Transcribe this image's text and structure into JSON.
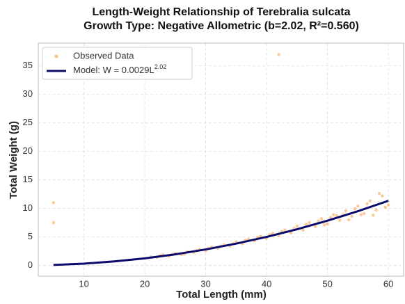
{
  "chart_data": {
    "type": "scatter",
    "title": "Length-Weight Relationship of Terebralia sulcata",
    "subtitle": "Growth Type: Negative Allometric (b=2.02, R²=0.560)",
    "x_label": "Total Length (mm)",
    "y_label": "Total Weight (g)",
    "xlim": [
      2.5,
      62.5
    ],
    "ylim": [
      -1.9,
      39
    ],
    "xticks": [
      10,
      20,
      30,
      40,
      50,
      60
    ],
    "yticks": [
      0,
      5,
      10,
      15,
      20,
      25,
      30,
      35
    ],
    "grid": true,
    "legend": "upper left",
    "series": [
      {
        "name": "Observed Data",
        "color": "#f7a54f",
        "kind": "points",
        "x": [
          5,
          5,
          42,
          21,
          22,
          23,
          24,
          25,
          26,
          27,
          28,
          29,
          30,
          31,
          32,
          33,
          34,
          35,
          36,
          37,
          38,
          39,
          40,
          41,
          42,
          43,
          44,
          45,
          46,
          47,
          48,
          49,
          50,
          51,
          52,
          53,
          54,
          55,
          56,
          57,
          58,
          59,
          60,
          22.5,
          24.5,
          26.5,
          28.5,
          30.5,
          32.5,
          34.5,
          36.5,
          38.5,
          40.5,
          42.5,
          44.5,
          46.5,
          48.5,
          50.5,
          52.5,
          54.5,
          56.5,
          57.5,
          58.5,
          59.5,
          55.5,
          53.5,
          51.5,
          49.5
        ],
        "values": [
          11,
          7.5,
          37,
          1.5,
          1.4,
          1.8,
          1.6,
          2.1,
          1.9,
          2.4,
          2.3,
          2.8,
          2.6,
          3.2,
          3.0,
          3.6,
          3.4,
          4.1,
          3.8,
          4.6,
          4.3,
          5.1,
          4.7,
          5.6,
          5.2,
          6.2,
          5.7,
          6.9,
          6.2,
          7.5,
          6.8,
          8.2,
          7.3,
          8.9,
          7.9,
          9.6,
          8.6,
          10.4,
          9.1,
          11.3,
          9.7,
          12.2,
          10.6,
          1.7,
          1.9,
          2.0,
          2.6,
          3.0,
          3.4,
          3.8,
          4.4,
          4.9,
          5.4,
          5.9,
          6.5,
          7.2,
          7.8,
          8.4,
          8.9,
          9.9,
          10.8,
          8.8,
          12.6,
          10.2,
          8.9,
          8.0,
          8.7,
          7.1
        ]
      },
      {
        "name": "Model: W = 0.0029L^2.02",
        "color": "#0b0b6e",
        "kind": "line",
        "x": [
          5,
          10,
          15,
          20,
          25,
          30,
          35,
          40,
          45,
          50,
          55,
          60
        ],
        "values": [
          0.075,
          0.304,
          0.689,
          1.232,
          1.933,
          2.794,
          3.814,
          4.995,
          6.337,
          7.84,
          9.505,
          11.33
        ]
      }
    ]
  }
}
